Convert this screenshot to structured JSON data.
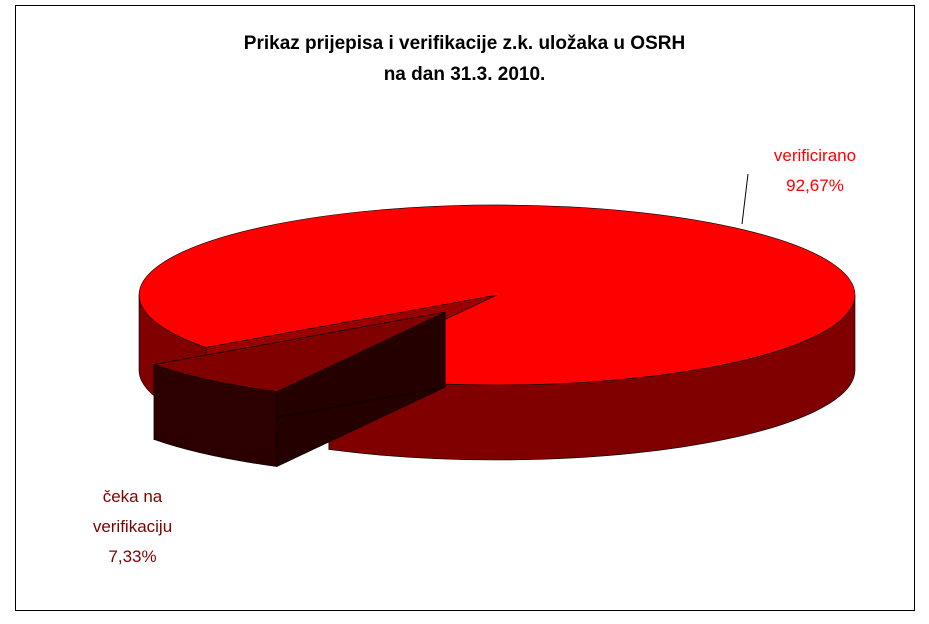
{
  "chart_data": {
    "type": "pie3d",
    "title": [
      "Prikaz prijepisa i verifikacije z.k. uložaka u OSRH",
      "na dan 31.3. 2010."
    ],
    "categories": [
      "verificirano",
      "čeka na verifikaciju"
    ],
    "values": [
      92.67,
      7.33
    ],
    "value_labels": [
      "92,67%",
      "7,33%"
    ],
    "colors": [
      "#ff0000",
      "#800000"
    ],
    "exploded": [
      false,
      true
    ]
  }
}
